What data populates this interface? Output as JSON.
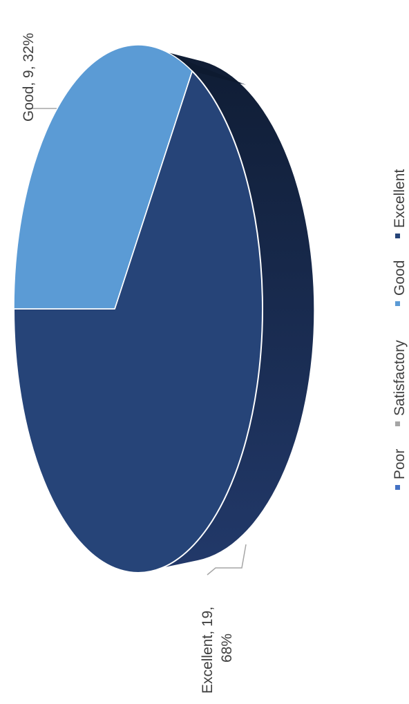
{
  "chart_data": {
    "type": "pie",
    "style": "3d",
    "orientation": "rotated-90-ccw",
    "categories": [
      "Poor",
      "Satisfactory",
      "Good",
      "Excellent"
    ],
    "values": [
      0,
      0,
      9,
      19
    ],
    "percents": [
      0,
      0,
      32,
      68
    ],
    "data_labels": [
      {
        "category": "Good",
        "lines": [
          "Good, 9, 32%"
        ]
      },
      {
        "category": "Excellent",
        "lines": [
          "Excellent, 19,",
          "68%"
        ]
      }
    ],
    "legend": {
      "position": "bottom",
      "items": [
        {
          "label": "Poor",
          "color": "#4472c4"
        },
        {
          "label": "Satisfactory",
          "color": "#a5a5a5"
        },
        {
          "label": "Good",
          "color": "#5b9bd5"
        },
        {
          "label": "Excellent",
          "color": "#264478"
        }
      ]
    },
    "colors": {
      "Good": "#5b9bd5",
      "Excellent": "#264478",
      "Excellent_side": "#152849",
      "edge": "#ffffff",
      "leader_line": "#a6a6a6"
    }
  }
}
